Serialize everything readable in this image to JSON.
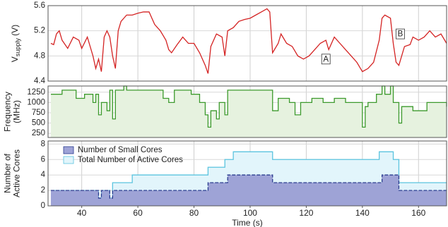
{
  "chart_data": [
    {
      "type": "line",
      "ylabel": [
        "V",
        "supply",
        " (V)"
      ],
      "color": "#d42323",
      "xlim": [
        28,
        170
      ],
      "ylim": [
        4.4,
        5.6
      ],
      "yticks": [
        4.4,
        4.8,
        5.2,
        5.6
      ],
      "grid": true,
      "x": [
        29,
        30,
        31,
        32,
        33,
        35,
        37,
        39,
        40,
        42,
        44,
        45,
        46,
        47,
        48,
        49,
        50,
        51,
        52,
        53,
        54,
        56,
        58,
        60,
        62,
        64,
        65,
        66,
        68,
        70,
        71,
        72,
        74,
        76,
        78,
        80,
        82,
        84,
        85,
        86,
        88,
        90,
        91,
        92,
        94,
        96,
        98,
        100,
        102,
        104,
        106,
        107,
        108,
        110,
        111,
        113,
        115,
        117,
        119,
        121,
        123,
        125,
        127,
        128,
        130,
        132,
        134,
        136,
        138,
        140,
        142,
        144,
        146,
        147,
        148,
        150,
        151,
        152,
        153,
        154,
        155,
        157,
        158,
        160,
        162,
        164,
        166,
        168,
        170
      ],
      "values": [
        5.0,
        4.98,
        5.15,
        5.2,
        5.05,
        4.92,
        5.1,
        5.05,
        4.92,
        5.1,
        4.8,
        4.6,
        4.75,
        4.55,
        5.1,
        5.2,
        5.1,
        4.8,
        4.6,
        5.2,
        5.35,
        5.45,
        5.45,
        5.48,
        5.5,
        5.5,
        5.4,
        5.3,
        5.2,
        5.05,
        4.9,
        4.85,
        4.98,
        5.1,
        5.0,
        5.0,
        4.85,
        4.65,
        4.52,
        4.95,
        5.15,
        5.1,
        4.8,
        5.2,
        5.25,
        5.35,
        5.38,
        5.4,
        5.45,
        5.5,
        5.55,
        5.5,
        4.85,
        5.0,
        5.15,
        5.0,
        4.95,
        4.8,
        4.75,
        4.8,
        4.9,
        5.0,
        5.05,
        4.9,
        5.1,
        5.0,
        4.9,
        4.8,
        4.7,
        4.55,
        4.6,
        4.7,
        5.05,
        5.4,
        5.45,
        5.4,
        5.0,
        4.7,
        4.65,
        4.8,
        4.95,
        4.98,
        5.1,
        5.05,
        5.1,
        5.2,
        5.1,
        5.15,
        5.0
      ],
      "annotations": [
        {
          "text": "A",
          "x": 127,
          "y": 4.75
        },
        {
          "text": "B",
          "x": 153.5,
          "y": 5.15
        }
      ]
    },
    {
      "type": "step_area",
      "ylabel": [
        "Frequency",
        "(MHz)"
      ],
      "color": "#3c9a2c",
      "xlim": [
        28,
        170
      ],
      "ylim": [
        150,
        1400
      ],
      "yticks": [
        250,
        500,
        750,
        1000,
        1250
      ],
      "grid": true,
      "x": [
        29,
        33,
        37,
        38,
        41,
        44,
        45,
        46,
        47,
        49,
        50,
        51,
        52,
        55,
        56,
        66,
        69,
        71,
        73,
        79,
        82,
        84,
        85,
        86,
        88,
        89,
        91,
        92,
        107,
        108,
        110,
        114,
        116,
        118,
        122,
        126,
        130,
        134,
        140,
        141,
        142,
        145,
        147,
        148,
        150,
        151,
        153,
        154,
        158,
        163,
        170
      ],
      "values": [
        1200,
        1300,
        1300,
        1100,
        1200,
        1000,
        1200,
        700,
        1000,
        800,
        1300,
        600,
        1300,
        1400,
        1300,
        1300,
        1100,
        1000,
        1300,
        1200,
        1000,
        700,
        400,
        800,
        600,
        1000,
        700,
        1300,
        1300,
        800,
        1100,
        1000,
        700,
        1000,
        1100,
        1000,
        1100,
        1000,
        400,
        900,
        1000,
        1200,
        1400,
        1200,
        1400,
        1000,
        500,
        900,
        800,
        1000,
        900
      ]
    },
    {
      "type": "step_area",
      "ylabel": [
        "Number of",
        "Active Cores"
      ],
      "xlabel": "Time (s)",
      "xlim": [
        28,
        170
      ],
      "ylim": [
        0,
        8.4
      ],
      "yticks": [
        0,
        2,
        4,
        6,
        8
      ],
      "xticks": [
        40,
        60,
        80,
        100,
        120,
        140,
        160
      ],
      "grid": true,
      "legend": "upper left",
      "series": [
        {
          "name": "Total Number of Active Cores",
          "color": "#5bc4df",
          "x": [
            29,
            46,
            47,
            50,
            51,
            58,
            85,
            91,
            94,
            108,
            146,
            151,
            153,
            170
          ],
          "values": [
            2,
            1,
            2,
            1,
            3,
            4,
            5,
            6,
            7,
            6,
            7,
            6,
            3,
            3
          ]
        },
        {
          "name": "Number of Small Cores",
          "color": "#2b3d8f",
          "x": [
            29,
            46,
            47,
            50,
            51,
            85,
            92,
            108,
            147,
            153,
            170
          ],
          "values": [
            2,
            1,
            2,
            1,
            2,
            3,
            4,
            3,
            4,
            2,
            2
          ]
        }
      ]
    }
  ]
}
